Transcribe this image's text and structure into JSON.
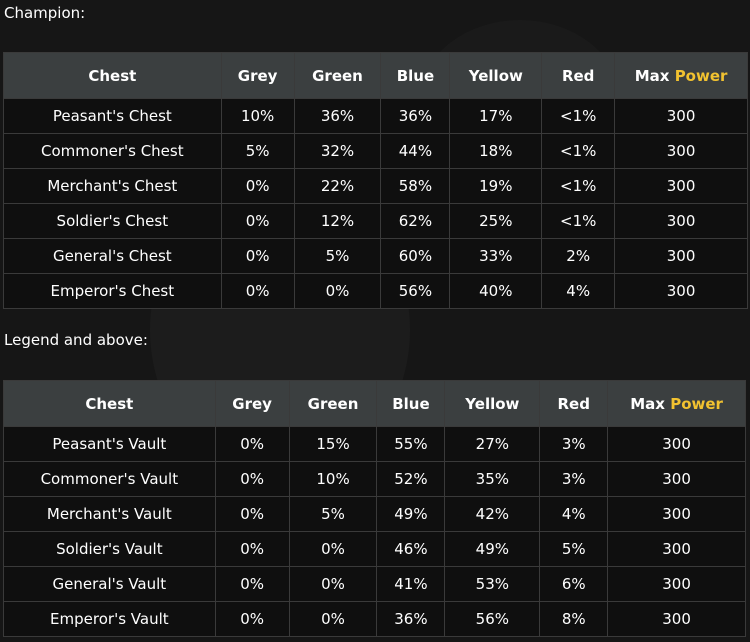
{
  "colors": {
    "grey": "#ffffff",
    "green": "#1f8e1f",
    "blue": "#35e6e6",
    "yellow": "#f2c230",
    "red": "#e01414",
    "header_bg": "#3b3f40",
    "cell_bg": "#0f0f0f"
  },
  "sections": [
    {
      "label": "Champion:",
      "headers": {
        "chest": "Chest",
        "grey": "Grey",
        "green": "Green",
        "blue": "Blue",
        "yellow": "Yellow",
        "red": "Red",
        "max": "Max",
        "power": "Power"
      },
      "rows": [
        {
          "name": "Peasant's Chest",
          "grey": "10%",
          "green": "36%",
          "blue": "36%",
          "yellow": "17%",
          "red": "<1%",
          "max_power": "300"
        },
        {
          "name": "Commoner's Chest",
          "grey": "5%",
          "green": "32%",
          "blue": "44%",
          "yellow": "18%",
          "red": "<1%",
          "max_power": "300"
        },
        {
          "name": "Merchant's Chest",
          "grey": "0%",
          "green": "22%",
          "blue": "58%",
          "yellow": "19%",
          "red": "<1%",
          "max_power": "300"
        },
        {
          "name": "Soldier's Chest",
          "grey": "0%",
          "green": "12%",
          "blue": "62%",
          "yellow": "25%",
          "red": "<1%",
          "max_power": "300"
        },
        {
          "name": "General's Chest",
          "grey": "0%",
          "green": "5%",
          "blue": "60%",
          "yellow": "33%",
          "red": "2%",
          "max_power": "300"
        },
        {
          "name": "Emperor's Chest",
          "grey": "0%",
          "green": "0%",
          "blue": "56%",
          "yellow": "40%",
          "red": "4%",
          "max_power": "300"
        }
      ]
    },
    {
      "label": "Legend and above:",
      "headers": {
        "chest": "Chest",
        "grey": "Grey",
        "green": "Green",
        "blue": "Blue",
        "yellow": "Yellow",
        "red": "Red",
        "max": "Max",
        "power": "Power"
      },
      "rows": [
        {
          "name": "Peasant's Vault",
          "grey": "0%",
          "green": "15%",
          "blue": "55%",
          "yellow": "27%",
          "red": "3%",
          "max_power": "300"
        },
        {
          "name": "Commoner's Vault",
          "grey": "0%",
          "green": "10%",
          "blue": "52%",
          "yellow": "35%",
          "red": "3%",
          "max_power": "300"
        },
        {
          "name": "Merchant's Vault",
          "grey": "0%",
          "green": "5%",
          "blue": "49%",
          "yellow": "42%",
          "red": "4%",
          "max_power": "300"
        },
        {
          "name": "Soldier's Vault",
          "grey": "0%",
          "green": "0%",
          "blue": "46%",
          "yellow": "49%",
          "red": "5%",
          "max_power": "300"
        },
        {
          "name": "General's Vault",
          "grey": "0%",
          "green": "0%",
          "blue": "41%",
          "yellow": "53%",
          "red": "6%",
          "max_power": "300"
        },
        {
          "name": "Emperor's Vault",
          "grey": "0%",
          "green": "0%",
          "blue": "36%",
          "yellow": "56%",
          "red": "8%",
          "max_power": "300"
        }
      ]
    }
  ]
}
